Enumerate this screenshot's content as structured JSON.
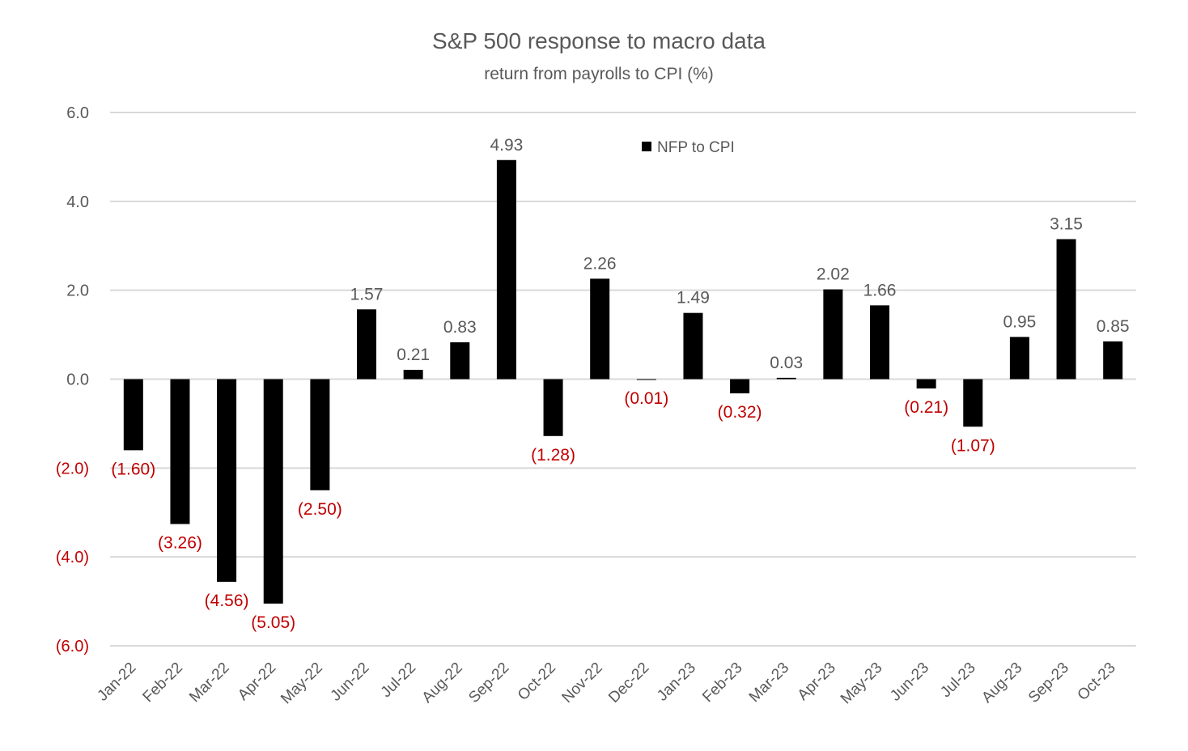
{
  "chart_data": {
    "type": "bar",
    "title": "S&P 500 response to macro data",
    "subtitle": "return from payrolls to CPI (%)",
    "xlabel": "",
    "ylabel": "",
    "ylim": [
      -6.0,
      6.0
    ],
    "y_ticks": [
      6.0,
      4.0,
      2.0,
      0.0,
      -2.0,
      -4.0,
      -6.0
    ],
    "y_tick_labels": [
      "6.0",
      "4.0",
      "2.0",
      "0.0",
      "(2.0)",
      "(4.0)",
      "(6.0)"
    ],
    "grid": true,
    "legend_position": "top-center",
    "categories": [
      "Jan-22",
      "Feb-22",
      "Mar-22",
      "Apr-22",
      "May-22",
      "Jun-22",
      "Jul-22",
      "Aug-22",
      "Sep-22",
      "Oct-22",
      "Nov-22",
      "Dec-22",
      "Jan-23",
      "Feb-23",
      "Mar-23",
      "Apr-23",
      "May-23",
      "Jun-23",
      "Jul-23",
      "Aug-23",
      "Sep-23",
      "Oct-23"
    ],
    "series": [
      {
        "name": "NFP to CPI",
        "values": [
          -1.6,
          -3.26,
          -4.56,
          -5.05,
          -2.5,
          1.57,
          0.21,
          0.83,
          4.93,
          -1.28,
          2.26,
          -0.01,
          1.49,
          -0.32,
          0.03,
          2.02,
          1.66,
          -0.21,
          -1.07,
          0.95,
          3.15,
          0.85
        ],
        "labels": [
          "(1.60)",
          "(3.26)",
          "(4.56)",
          "(5.05)",
          "(2.50)",
          "1.57",
          "0.21",
          "0.83",
          "4.93",
          "(1.28)",
          "2.26",
          "(0.01)",
          "1.49",
          "(0.32)",
          "0.03",
          "2.02",
          "1.66",
          "(0.21)",
          "(1.07)",
          "0.95",
          "3.15",
          "0.85"
        ]
      }
    ],
    "colors": {
      "bar": "#000000",
      "positive_label": "#595959",
      "negative_label": "#c00000",
      "gridline": "#d9d9d9",
      "axis_text": "#595959"
    }
  }
}
